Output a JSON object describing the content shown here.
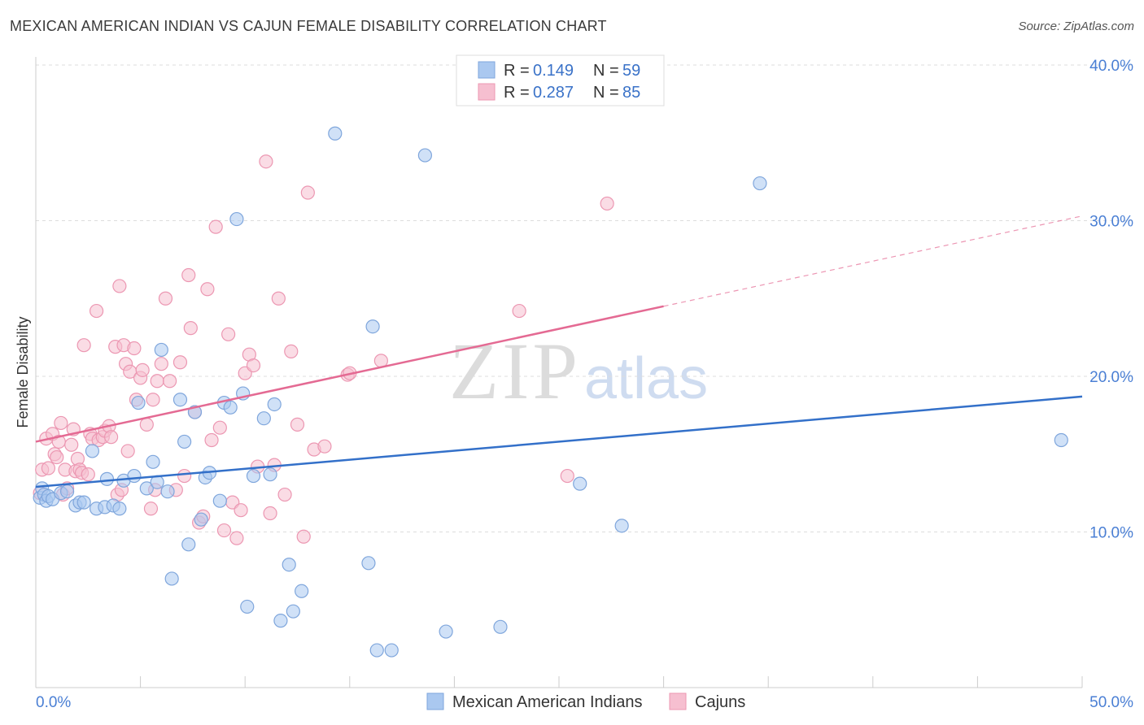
{
  "title": "MEXICAN AMERICAN INDIAN VS CAJUN FEMALE DISABILITY CORRELATION CHART",
  "source": "Source: ZipAtlas.com",
  "watermark": {
    "zip": "ZIP",
    "atlas": "atlas"
  },
  "legend_top": {
    "r_label": "R =",
    "n_label": "N =",
    "rows": [
      {
        "r": "0.149",
        "n": "59"
      },
      {
        "r": "0.287",
        "n": "85"
      }
    ]
  },
  "colors": {
    "blue_fill": "#aac8f0",
    "blue_stroke": "#7fa6dc",
    "blue_line": "#3370c9",
    "pink_fill": "#f6bfd0",
    "pink_stroke": "#ec97b2",
    "pink_line": "#e46a93",
    "grid": "#dddddd",
    "tick_text": "#4a7fd4"
  },
  "chart_data": {
    "type": "scatter",
    "title": "MEXICAN AMERICAN INDIAN VS CAJUN FEMALE DISABILITY CORRELATION CHART",
    "xlabel": "",
    "ylabel": "Female Disability",
    "xlim": [
      0,
      50
    ],
    "ylim": [
      0,
      40
    ],
    "x_tick_labels": [
      "0.0%",
      "50.0%"
    ],
    "y_ticks": [
      10,
      20,
      30,
      40
    ],
    "y_tick_labels": [
      "10.0%",
      "20.0%",
      "30.0%",
      "40.0%"
    ],
    "legend": [
      "Mexican American Indians",
      "Cajuns"
    ],
    "series": [
      {
        "name": "Mexican American Indians",
        "r": 0.149,
        "n": 59,
        "trend": {
          "x0": 0,
          "y0": 12.9,
          "x1": 50,
          "y1": 18.7,
          "solid_until": 50
        },
        "points": [
          [
            0.2,
            12.2
          ],
          [
            0.3,
            12.8
          ],
          [
            0.4,
            12.4
          ],
          [
            0.5,
            12.0
          ],
          [
            0.6,
            12.3
          ],
          [
            0.8,
            12.1
          ],
          [
            1.2,
            12.5
          ],
          [
            1.5,
            12.6
          ],
          [
            1.9,
            11.7
          ],
          [
            2.1,
            11.9
          ],
          [
            2.3,
            11.9
          ],
          [
            2.7,
            15.2
          ],
          [
            2.9,
            11.5
          ],
          [
            3.3,
            11.6
          ],
          [
            3.4,
            13.4
          ],
          [
            3.7,
            11.7
          ],
          [
            4.0,
            11.5
          ],
          [
            4.2,
            13.3
          ],
          [
            4.7,
            13.6
          ],
          [
            4.9,
            18.3
          ],
          [
            5.3,
            12.8
          ],
          [
            5.6,
            14.5
          ],
          [
            5.8,
            13.2
          ],
          [
            6.0,
            21.7
          ],
          [
            6.3,
            12.6
          ],
          [
            6.5,
            7.0
          ],
          [
            6.9,
            18.5
          ],
          [
            7.1,
            15.8
          ],
          [
            7.3,
            9.2
          ],
          [
            7.6,
            17.7
          ],
          [
            7.9,
            10.8
          ],
          [
            8.1,
            13.5
          ],
          [
            8.3,
            13.8
          ],
          [
            8.8,
            12.0
          ],
          [
            9.0,
            18.3
          ],
          [
            9.3,
            18.0
          ],
          [
            9.6,
            30.1
          ],
          [
            9.9,
            18.9
          ],
          [
            10.1,
            5.2
          ],
          [
            10.4,
            13.6
          ],
          [
            10.9,
            17.3
          ],
          [
            11.2,
            13.7
          ],
          [
            11.4,
            18.2
          ],
          [
            11.7,
            4.3
          ],
          [
            12.1,
            7.9
          ],
          [
            12.3,
            4.9
          ],
          [
            12.7,
            6.2
          ],
          [
            14.3,
            35.6
          ],
          [
            15.9,
            8.0
          ],
          [
            16.1,
            23.2
          ],
          [
            16.3,
            2.4
          ],
          [
            17.0,
            2.4
          ],
          [
            18.6,
            34.2
          ],
          [
            19.6,
            3.6
          ],
          [
            22.2,
            3.9
          ],
          [
            26.0,
            13.1
          ],
          [
            28.0,
            10.4
          ],
          [
            34.6,
            32.4
          ],
          [
            49.0,
            15.9
          ]
        ]
      },
      {
        "name": "Cajuns",
        "r": 0.287,
        "n": 85,
        "trend": {
          "x0": 0,
          "y0": 15.8,
          "x1": 50,
          "y1": 30.3,
          "solid_until": 30.0
        },
        "points": [
          [
            0.2,
            12.5
          ],
          [
            0.3,
            14.0
          ],
          [
            0.5,
            16.0
          ],
          [
            0.6,
            14.1
          ],
          [
            0.8,
            16.3
          ],
          [
            0.9,
            15.0
          ],
          [
            1.0,
            14.8
          ],
          [
            1.1,
            15.8
          ],
          [
            1.2,
            17.0
          ],
          [
            1.3,
            12.4
          ],
          [
            1.4,
            14.0
          ],
          [
            1.5,
            12.8
          ],
          [
            1.7,
            15.6
          ],
          [
            1.8,
            16.6
          ],
          [
            1.9,
            13.9
          ],
          [
            2.0,
            14.7
          ],
          [
            2.1,
            14.0
          ],
          [
            2.2,
            13.8
          ],
          [
            2.3,
            22.0
          ],
          [
            2.5,
            13.7
          ],
          [
            2.6,
            16.3
          ],
          [
            2.7,
            16.0
          ],
          [
            2.9,
            24.2
          ],
          [
            3.0,
            15.9
          ],
          [
            3.2,
            16.1
          ],
          [
            3.3,
            16.5
          ],
          [
            3.5,
            16.8
          ],
          [
            3.6,
            16.1
          ],
          [
            3.8,
            21.9
          ],
          [
            3.9,
            12.4
          ],
          [
            4.0,
            25.8
          ],
          [
            4.1,
            12.7
          ],
          [
            4.2,
            22.0
          ],
          [
            4.3,
            20.8
          ],
          [
            4.4,
            15.2
          ],
          [
            4.5,
            20.3
          ],
          [
            4.7,
            21.8
          ],
          [
            4.8,
            18.5
          ],
          [
            5.0,
            19.9
          ],
          [
            5.1,
            20.4
          ],
          [
            5.3,
            16.9
          ],
          [
            5.5,
            11.5
          ],
          [
            5.6,
            18.5
          ],
          [
            5.7,
            12.7
          ],
          [
            5.8,
            19.7
          ],
          [
            6.0,
            20.8
          ],
          [
            6.2,
            25.0
          ],
          [
            6.4,
            19.7
          ],
          [
            6.7,
            12.7
          ],
          [
            6.9,
            20.9
          ],
          [
            7.1,
            13.6
          ],
          [
            7.3,
            26.5
          ],
          [
            7.4,
            23.1
          ],
          [
            7.6,
            17.7
          ],
          [
            7.8,
            10.6
          ],
          [
            8.0,
            11.0
          ],
          [
            8.2,
            25.6
          ],
          [
            8.4,
            15.9
          ],
          [
            8.6,
            29.6
          ],
          [
            8.8,
            16.7
          ],
          [
            9.0,
            10.1
          ],
          [
            9.2,
            22.7
          ],
          [
            9.4,
            11.9
          ],
          [
            9.6,
            9.6
          ],
          [
            9.8,
            11.4
          ],
          [
            10.0,
            20.2
          ],
          [
            10.2,
            21.4
          ],
          [
            10.4,
            20.7
          ],
          [
            10.6,
            14.2
          ],
          [
            11.0,
            33.8
          ],
          [
            11.2,
            11.2
          ],
          [
            11.4,
            14.3
          ],
          [
            11.6,
            25.0
          ],
          [
            11.9,
            12.4
          ],
          [
            12.2,
            21.6
          ],
          [
            12.5,
            16.9
          ],
          [
            12.8,
            9.7
          ],
          [
            13.0,
            31.8
          ],
          [
            13.3,
            15.3
          ],
          [
            13.8,
            15.5
          ],
          [
            14.9,
            20.1
          ],
          [
            15.0,
            20.2
          ],
          [
            16.5,
            21.0
          ],
          [
            23.1,
            24.2
          ],
          [
            25.4,
            13.6
          ],
          [
            27.3,
            31.1
          ]
        ]
      }
    ]
  },
  "legend_bottom": [
    {
      "label": "Mexican American Indians"
    },
    {
      "label": "Cajuns"
    }
  ]
}
